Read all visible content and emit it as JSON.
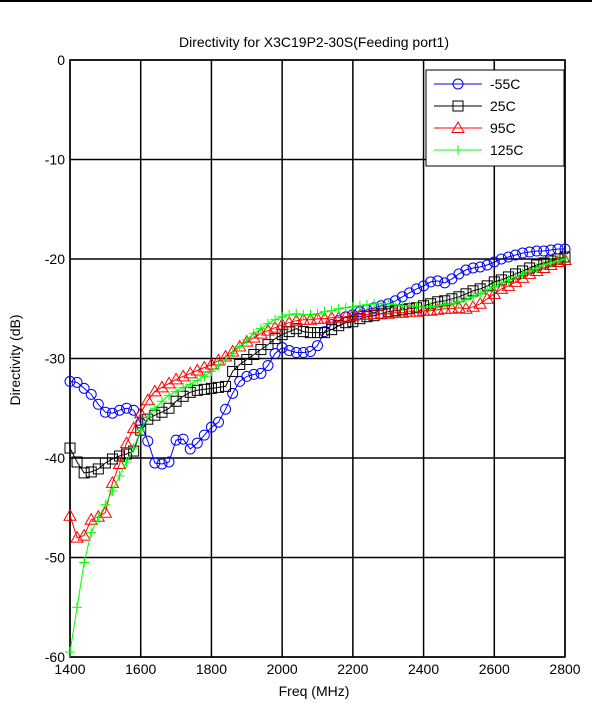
{
  "chart_data": {
    "type": "line",
    "title": "Directivity for X3C19P2-30S(Feeding port1)",
    "xlabel": "Freq (MHz)",
    "ylabel": "Directivity (dB)",
    "xlim": [
      1400,
      2800
    ],
    "ylim": [
      -60,
      0
    ],
    "xticks": [
      1400,
      1600,
      1800,
      2000,
      2200,
      2400,
      2600,
      2800
    ],
    "yticks": [
      0,
      -10,
      -20,
      -30,
      -40,
      -50,
      -60
    ],
    "grid": true,
    "legend_position": "top-right",
    "series": [
      {
        "name": "-55C",
        "color": "#0000ff",
        "marker": "circle",
        "x": [
          1400,
          1420,
          1440,
          1460,
          1480,
          1500,
          1520,
          1540,
          1560,
          1580,
          1600,
          1620,
          1640,
          1660,
          1680,
          1700,
          1720,
          1740,
          1760,
          1780,
          1800,
          1820,
          1840,
          1860,
          1880,
          1900,
          1920,
          1940,
          1960,
          1980,
          2000,
          2020,
          2040,
          2060,
          2080,
          2100,
          2120,
          2140,
          2160,
          2180,
          2200,
          2220,
          2240,
          2260,
          2280,
          2300,
          2320,
          2340,
          2360,
          2380,
          2400,
          2420,
          2440,
          2460,
          2480,
          2500,
          2520,
          2540,
          2560,
          2580,
          2600,
          2620,
          2640,
          2660,
          2680,
          2700,
          2720,
          2740,
          2760,
          2780,
          2800
        ],
        "y": [
          -32.3,
          -32.4,
          -33.0,
          -33.6,
          -34.6,
          -35.4,
          -35.5,
          -35.2,
          -35.0,
          -35.2,
          -36.5,
          -38.3,
          -40.5,
          -40.6,
          -40.4,
          -38.2,
          -38.1,
          -39.1,
          -38.5,
          -37.7,
          -36.9,
          -36.4,
          -35.1,
          -33.5,
          -32.3,
          -31.8,
          -31.6,
          -31.5,
          -30.7,
          -29.5,
          -28.9,
          -29.2,
          -29.4,
          -29.4,
          -29.3,
          -28.7,
          -27.3,
          -26.6,
          -26.2,
          -25.8,
          -25.6,
          -25.3,
          -25.1,
          -24.9,
          -24.7,
          -24.5,
          -24.2,
          -23.8,
          -23.4,
          -23.0,
          -22.7,
          -22.3,
          -22.2,
          -22.4,
          -22.0,
          -21.5,
          -21.1,
          -20.9,
          -20.8,
          -20.6,
          -20.3,
          -20.0,
          -19.8,
          -19.6,
          -19.4,
          -19.3,
          -19.2,
          -19.2,
          -19.1,
          -19.0,
          -19.0
        ]
      },
      {
        "name": "25C",
        "color": "#000000",
        "marker": "square",
        "x": [
          1400,
          1420,
          1440,
          1460,
          1480,
          1500,
          1520,
          1540,
          1560,
          1580,
          1600,
          1620,
          1640,
          1660,
          1680,
          1700,
          1720,
          1740,
          1760,
          1780,
          1800,
          1820,
          1840,
          1860,
          1880,
          1900,
          1920,
          1940,
          1960,
          1980,
          2000,
          2020,
          2040,
          2060,
          2080,
          2100,
          2120,
          2140,
          2160,
          2180,
          2200,
          2220,
          2240,
          2260,
          2280,
          2300,
          2320,
          2340,
          2360,
          2380,
          2400,
          2420,
          2440,
          2460,
          2480,
          2500,
          2520,
          2540,
          2560,
          2580,
          2600,
          2620,
          2640,
          2660,
          2680,
          2700,
          2720,
          2740,
          2760,
          2780,
          2800
        ],
        "y": [
          -39.0,
          -40.4,
          -41.5,
          -41.4,
          -41.1,
          -40.5,
          -40.1,
          -39.8,
          -39.6,
          -39.3,
          -37.2,
          -36.1,
          -35.7,
          -35.4,
          -35.0,
          -34.3,
          -33.8,
          -33.4,
          -33.2,
          -33.1,
          -33.0,
          -32.9,
          -32.8,
          -31.3,
          -30.6,
          -30.1,
          -29.6,
          -29.1,
          -28.6,
          -28.0,
          -27.6,
          -27.3,
          -27.0,
          -27.3,
          -27.4,
          -27.4,
          -27.4,
          -27.1,
          -26.7,
          -26.4,
          -26.3,
          -26.0,
          -25.8,
          -25.7,
          -25.5,
          -25.3,
          -25.2,
          -25.1,
          -25.0,
          -24.9,
          -24.7,
          -24.5,
          -24.3,
          -24.2,
          -24.0,
          -23.8,
          -23.5,
          -23.2,
          -23.0,
          -22.7,
          -22.3,
          -22.1,
          -21.8,
          -21.5,
          -21.2,
          -20.9,
          -20.6,
          -20.4,
          -20.2,
          -20.0,
          -19.8
        ]
      },
      {
        "name": "95C",
        "color": "#ff0000",
        "marker": "triangle",
        "x": [
          1400,
          1420,
          1440,
          1460,
          1480,
          1500,
          1520,
          1540,
          1560,
          1580,
          1600,
          1620,
          1640,
          1660,
          1680,
          1700,
          1720,
          1740,
          1760,
          1780,
          1800,
          1820,
          1840,
          1860,
          1880,
          1900,
          1920,
          1940,
          1960,
          1980,
          2000,
          2020,
          2040,
          2060,
          2080,
          2100,
          2120,
          2140,
          2160,
          2180,
          2200,
          2220,
          2240,
          2260,
          2280,
          2300,
          2320,
          2340,
          2360,
          2380,
          2400,
          2420,
          2440,
          2460,
          2480,
          2500,
          2520,
          2540,
          2560,
          2580,
          2600,
          2620,
          2640,
          2660,
          2680,
          2700,
          2720,
          2740,
          2760,
          2780,
          2800
        ],
        "y": [
          -45.8,
          -48.0,
          -47.8,
          -46.2,
          -45.9,
          -45.5,
          -42.5,
          -40.6,
          -38.5,
          -37.0,
          -35.5,
          -34.2,
          -33.3,
          -32.9,
          -32.5,
          -32.1,
          -31.8,
          -31.5,
          -31.2,
          -30.9,
          -30.6,
          -30.2,
          -29.8,
          -29.3,
          -28.8,
          -28.3,
          -27.9,
          -27.5,
          -27.2,
          -26.9,
          -26.6,
          -26.4,
          -26.2,
          -26.1,
          -26.1,
          -26.0,
          -26.0,
          -25.9,
          -25.9,
          -25.8,
          -25.7,
          -25.6,
          -25.6,
          -25.5,
          -25.5,
          -25.5,
          -25.4,
          -25.4,
          -25.3,
          -25.3,
          -25.2,
          -25.2,
          -25.1,
          -25.0,
          -25.0,
          -24.9,
          -25.0,
          -24.8,
          -24.5,
          -24.0,
          -23.5,
          -23.0,
          -22.7,
          -22.3,
          -21.9,
          -21.5,
          -21.2,
          -20.9,
          -20.6,
          -20.3,
          -20.1
        ]
      },
      {
        "name": "125C",
        "color": "#00ff00",
        "marker": "plus",
        "x": [
          1400,
          1420,
          1440,
          1460,
          1480,
          1500,
          1520,
          1540,
          1560,
          1580,
          1600,
          1620,
          1640,
          1660,
          1680,
          1700,
          1720,
          1740,
          1760,
          1780,
          1800,
          1820,
          1840,
          1860,
          1880,
          1900,
          1920,
          1940,
          1960,
          1980,
          2000,
          2020,
          2040,
          2060,
          2080,
          2100,
          2120,
          2140,
          2160,
          2180,
          2200,
          2220,
          2240,
          2260,
          2280,
          2300,
          2320,
          2340,
          2360,
          2380,
          2400,
          2420,
          2440,
          2460,
          2480,
          2500,
          2520,
          2540,
          2560,
          2580,
          2600,
          2620,
          2640,
          2660,
          2680,
          2700,
          2720,
          2740,
          2760,
          2780,
          2800
        ],
        "y": [
          -59.5,
          -55.0,
          -50.5,
          -47.5,
          -46.0,
          -44.7,
          -43.3,
          -41.8,
          -40.4,
          -39.0,
          -37.2,
          -35.9,
          -35.0,
          -34.3,
          -33.7,
          -33.3,
          -32.9,
          -32.6,
          -32.2,
          -31.8,
          -31.3,
          -30.7,
          -30.1,
          -29.5,
          -28.8,
          -28.1,
          -27.5,
          -27.0,
          -26.5,
          -26.1,
          -25.8,
          -25.6,
          -25.5,
          -25.6,
          -25.6,
          -25.5,
          -25.3,
          -25.2,
          -25.0,
          -24.9,
          -24.8,
          -24.7,
          -24.6,
          -24.5,
          -24.5,
          -24.5,
          -24.6,
          -24.7,
          -24.7,
          -24.8,
          -24.8,
          -24.8,
          -24.7,
          -24.6,
          -24.5,
          -24.3,
          -24.1,
          -23.8,
          -23.5,
          -23.1,
          -22.8,
          -22.4,
          -22.1,
          -21.8,
          -21.5,
          -21.2,
          -20.9,
          -20.6,
          -20.4,
          -20.2,
          -20.0
        ]
      }
    ]
  }
}
